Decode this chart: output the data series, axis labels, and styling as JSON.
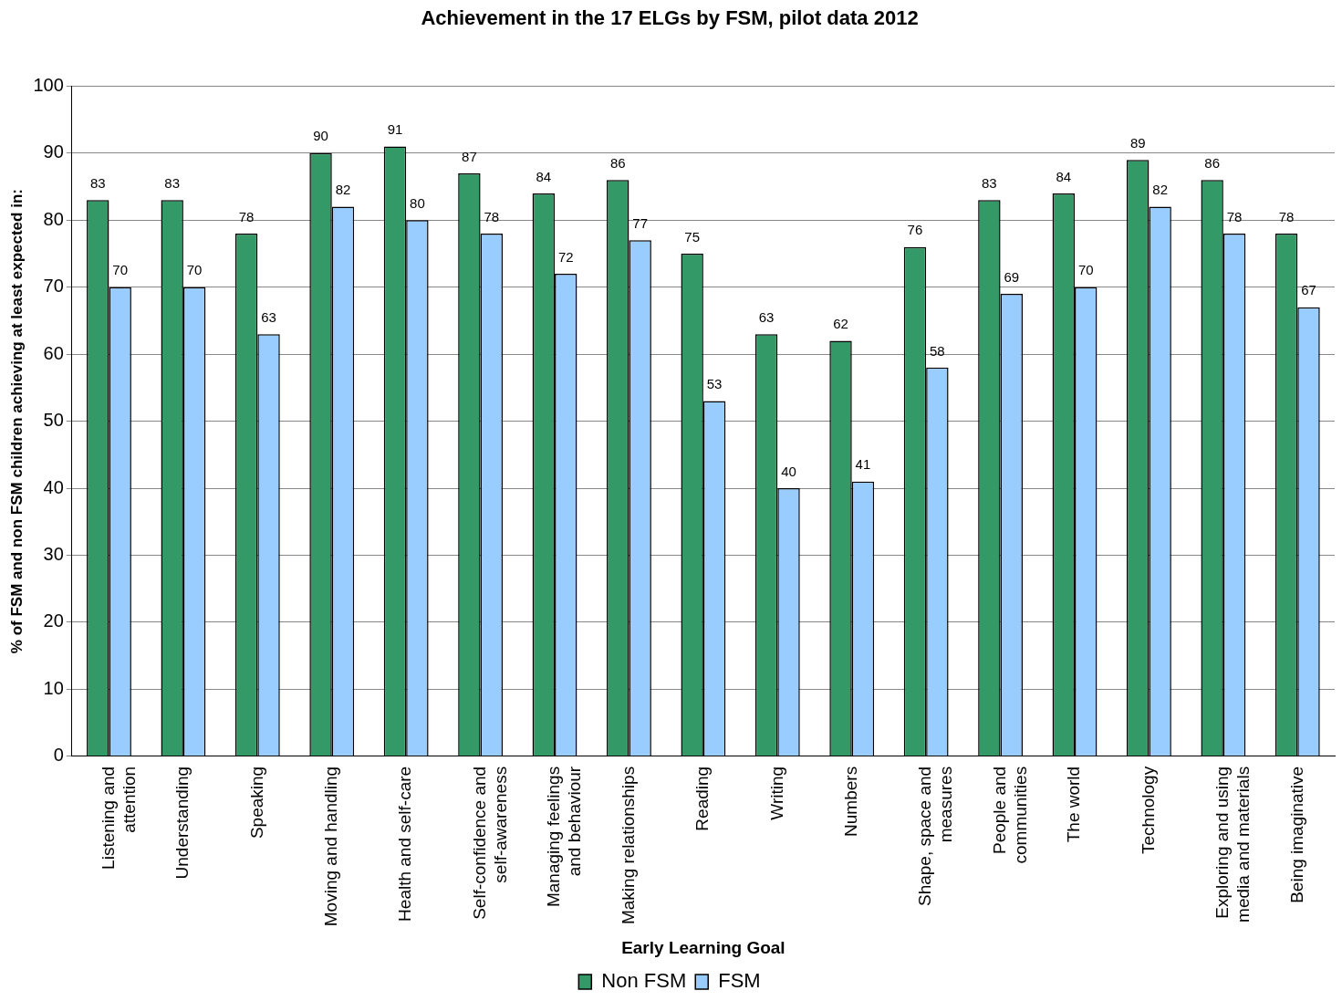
{
  "chart_data": {
    "type": "bar",
    "title": "Achievement in the 17 ELGs by FSM, pilot data 2012",
    "xlabel": "Early Learning Goal",
    "ylabel": "% of FSM and non FSM children achieving at least expected in:",
    "categories": [
      "Listening and attention",
      "Understanding",
      "Speaking",
      "Moving and handling",
      "Health and self-care",
      "Self-confidence and self-awareness",
      "Managing feelings and behaviour",
      "Making relationships",
      "Reading",
      "Writing",
      "Numbers",
      "Shape, space and measures",
      "People and communities",
      "The world",
      "Technology",
      "Exploring and using media and materials",
      "Being imaginative"
    ],
    "series": [
      {
        "name": "Non FSM",
        "color": "#339966",
        "values": [
          83,
          83,
          78,
          90,
          91,
          87,
          84,
          86,
          75,
          63,
          62,
          76,
          83,
          84,
          89,
          86,
          78
        ]
      },
      {
        "name": "FSM",
        "color": "#99ccff",
        "values": [
          70,
          70,
          63,
          82,
          80,
          78,
          72,
          77,
          53,
          40,
          41,
          58,
          69,
          70,
          82,
          78,
          67
        ]
      }
    ],
    "ylim": [
      0,
      100
    ],
    "yticks": [
      0,
      10,
      20,
      30,
      40,
      50,
      60,
      70,
      80,
      90,
      100
    ],
    "grid": "y",
    "legend": "bottom",
    "data_labels": true
  }
}
